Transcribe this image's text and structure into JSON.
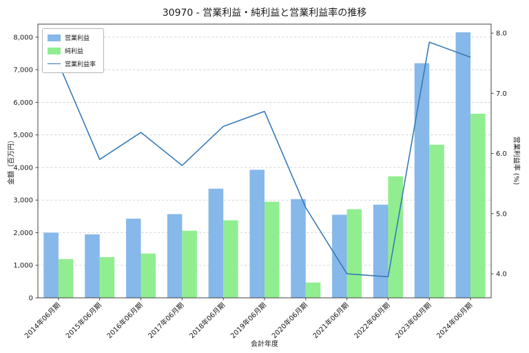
{
  "chart_data": {
    "type": "bar+line",
    "title": "30970 - 営業利益・純利益と営業利益率の推移",
    "xlabel": "会計年度",
    "ylabel_left": "金額（百万円）",
    "ylabel_right": "営業利益率 (%)",
    "categories": [
      "2014年06月期",
      "2015年06月期",
      "2016年06月期",
      "2017年06月期",
      "2018年06月期",
      "2019年06月期",
      "2020年06月期",
      "2021年06月期",
      "2022年06月期",
      "2023年06月期",
      "2024年06月期"
    ],
    "series": [
      {
        "name": "営業利益",
        "type": "bar",
        "axis": "left",
        "color": "#86b8ea",
        "values": [
          2000,
          1950,
          2430,
          2570,
          3350,
          3930,
          3030,
          2550,
          2860,
          7200,
          8150
        ]
      },
      {
        "name": "純利益",
        "type": "bar",
        "axis": "left",
        "color": "#90ee90",
        "values": [
          1190,
          1250,
          1360,
          2060,
          2380,
          2950,
          470,
          2720,
          3730,
          4700,
          5650
        ]
      },
      {
        "name": "営業利益率",
        "type": "line",
        "axis": "right",
        "color": "#3679b5",
        "values": [
          7.5,
          5.9,
          6.35,
          5.8,
          6.45,
          6.7,
          5.1,
          4.0,
          3.95,
          7.85,
          7.6
        ]
      }
    ],
    "left_axis": {
      "min": 0,
      "max": 8400,
      "ticks": [
        0,
        1000,
        2000,
        3000,
        4000,
        5000,
        6000,
        7000,
        8000
      ]
    },
    "right_axis": {
      "min": 3.6,
      "max": 8.15,
      "ticks": [
        4,
        5,
        6,
        7,
        8
      ]
    },
    "grid": true,
    "legend_position": "upper-left"
  }
}
